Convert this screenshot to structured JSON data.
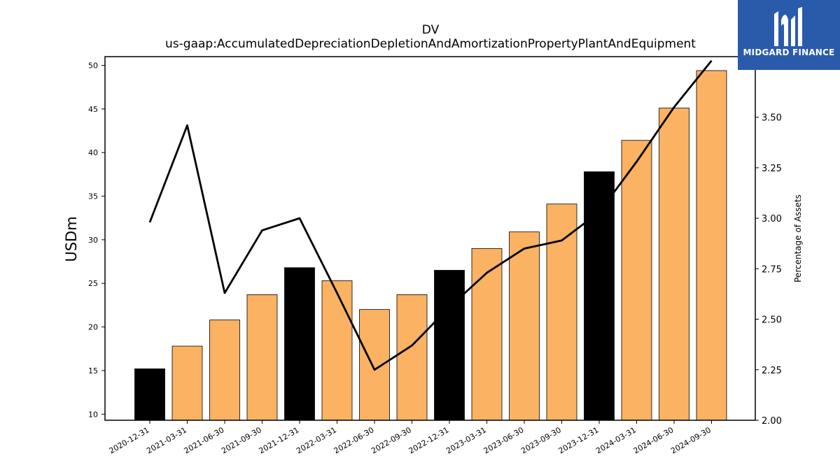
{
  "chart_data": {
    "type": "bar",
    "title": "DV",
    "subtitle": "us-gaap:AccumulatedDepreciationDepletionAndAmortizationPropertyPlantAndEquipment",
    "ylabel": "USDm",
    "y2label": "Percentage of Assets",
    "categories": [
      "2020-12-31",
      "2021-03-31",
      "2021-06-30",
      "2021-09-30",
      "2021-12-31",
      "2022-03-31",
      "2022-06-30",
      "2022-09-30",
      "2022-12-31",
      "2023-03-31",
      "2023-06-30",
      "2023-09-30",
      "2023-12-31",
      "2024-03-31",
      "2024-06-30",
      "2024-09-30"
    ],
    "bar_values": [
      15.2,
      17.8,
      20.8,
      23.7,
      26.8,
      25.3,
      22.0,
      23.7,
      26.5,
      29.0,
      30.9,
      34.1,
      37.8,
      41.4,
      45.1,
      49.4
    ],
    "bar_colors": [
      "#000000",
      "#fbb262",
      "#fbb262",
      "#fbb262",
      "#000000",
      "#fbb262",
      "#fbb262",
      "#fbb262",
      "#000000",
      "#fbb262",
      "#fbb262",
      "#fbb262",
      "#000000",
      "#fbb262",
      "#fbb262",
      "#fbb262"
    ],
    "line_values": [
      2.98,
      3.46,
      2.63,
      2.94,
      3.0,
      2.63,
      2.25,
      2.37,
      2.56,
      2.73,
      2.85,
      2.89,
      3.03,
      3.28,
      3.55,
      3.78
    ],
    "ylim": [
      9.3,
      51.0
    ],
    "y_ticks": [
      10,
      15,
      20,
      25,
      30,
      35,
      40,
      45,
      50
    ],
    "y2lim": [
      2.0,
      3.8
    ],
    "y2_ticks": [
      "2.00",
      "2.25",
      "2.50",
      "2.75",
      "3.00",
      "3.25",
      "3.50"
    ],
    "grid": false,
    "line_color": "#000000"
  },
  "logo": {
    "text": "MIDGARD FINANCE",
    "background": "#2a5bab"
  }
}
